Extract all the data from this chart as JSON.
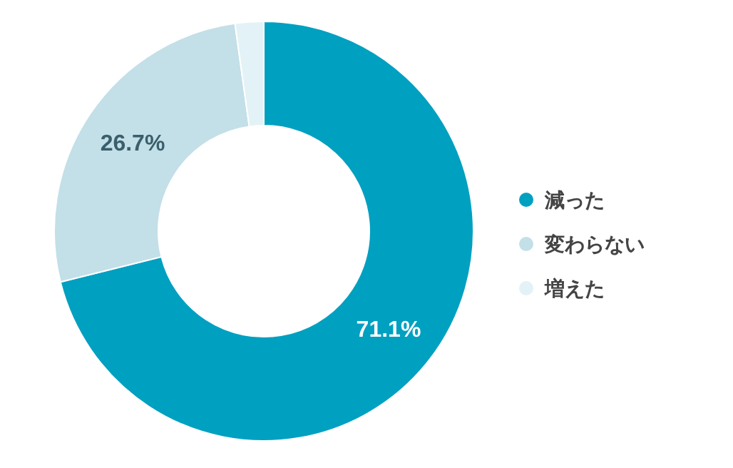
{
  "chart_data": {
    "type": "donut",
    "categories": [
      "減った",
      "変わらない",
      "増えた"
    ],
    "values": [
      71.1,
      26.7,
      2.2
    ],
    "colors": [
      "#00a0c1",
      "#c3dfe8",
      "#e3f2f6"
    ],
    "value_labels": [
      "71.1%",
      "26.7%",
      null
    ],
    "legend": "right"
  }
}
